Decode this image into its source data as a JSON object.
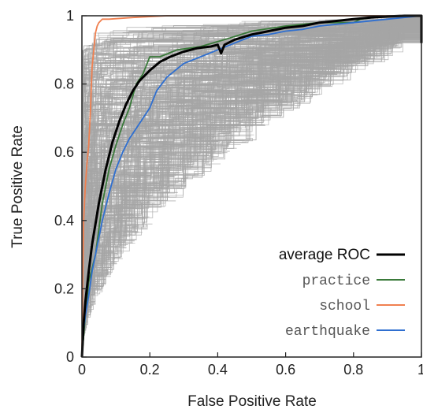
{
  "chart_data": {
    "type": "line",
    "title": "",
    "xlabel": "False Positive Rate",
    "ylabel": "True Positive Rate",
    "xlim": [
      0,
      1
    ],
    "ylim": [
      0,
      1
    ],
    "x_ticks": [
      "0",
      "0.2",
      "0.4",
      "0.6",
      "0.8",
      "1"
    ],
    "y_ticks": [
      "0",
      "0.2",
      "0.4",
      "0.6",
      "0.8",
      "1"
    ],
    "grid": false,
    "legend_position": "bottom-right",
    "background_curves": {
      "description_color": "#a6a6a6",
      "count_estimate": 400
    },
    "series": [
      {
        "name": "average ROC",
        "color": "#000000",
        "x": [
          0,
          0.005,
          0.01,
          0.02,
          0.03,
          0.05,
          0.07,
          0.09,
          0.11,
          0.13,
          0.15,
          0.17,
          0.2,
          0.23,
          0.26,
          0.3,
          0.34,
          0.38,
          0.4,
          0.41,
          0.42,
          0.45,
          0.5,
          0.55,
          0.6,
          0.65,
          0.7,
          0.75,
          0.8,
          0.85,
          0.9,
          0.95,
          1.0,
          1.0
        ],
        "y": [
          0,
          0.1,
          0.16,
          0.25,
          0.33,
          0.45,
          0.55,
          0.63,
          0.69,
          0.74,
          0.78,
          0.81,
          0.84,
          0.865,
          0.88,
          0.895,
          0.905,
          0.91,
          0.915,
          0.89,
          0.915,
          0.93,
          0.945,
          0.955,
          0.965,
          0.97,
          0.98,
          0.985,
          0.99,
          0.995,
          0.998,
          1.0,
          1.0,
          0.92
        ]
      },
      {
        "name": "practice",
        "color": "#3a7a3a",
        "x": [
          0,
          0.01,
          0.02,
          0.04,
          0.06,
          0.08,
          0.1,
          0.12,
          0.14,
          0.16,
          0.18,
          0.2,
          0.23,
          0.28,
          0.35,
          0.42,
          0.5,
          0.6,
          0.7,
          0.8,
          0.82,
          0.9,
          1.0
        ],
        "y": [
          0,
          0.12,
          0.22,
          0.3,
          0.45,
          0.55,
          0.62,
          0.68,
          0.73,
          0.8,
          0.83,
          0.88,
          0.88,
          0.9,
          0.91,
          0.93,
          0.955,
          0.97,
          0.98,
          0.98,
          0.99,
          1.0,
          1.0
        ]
      },
      {
        "name": "school",
        "color": "#f08050",
        "x": [
          0,
          0.002,
          0.005,
          0.01,
          0.015,
          0.02,
          0.025,
          0.03,
          0.035,
          0.04,
          0.045,
          0.05,
          0.055,
          0.06,
          0.08,
          0.15,
          0.25,
          0.4,
          0.6,
          1.0
        ],
        "y": [
          0,
          0.2,
          0.4,
          0.5,
          0.57,
          0.62,
          0.72,
          0.85,
          0.9,
          0.95,
          0.97,
          0.98,
          0.985,
          0.99,
          0.99,
          0.995,
          1.0,
          1.0,
          1.0,
          1.0
        ]
      },
      {
        "name": "earthquake",
        "color": "#2f6fd0",
        "x": [
          0,
          0.005,
          0.01,
          0.02,
          0.03,
          0.04,
          0.06,
          0.08,
          0.1,
          0.12,
          0.14,
          0.16,
          0.18,
          0.2,
          0.22,
          0.25,
          0.3,
          0.35,
          0.4,
          0.45,
          0.5,
          0.55,
          0.6,
          0.65,
          0.7,
          0.8,
          0.9,
          1.0
        ],
        "y": [
          0,
          0.08,
          0.12,
          0.18,
          0.25,
          0.3,
          0.4,
          0.48,
          0.55,
          0.6,
          0.64,
          0.67,
          0.7,
          0.73,
          0.78,
          0.82,
          0.86,
          0.88,
          0.9,
          0.92,
          0.94,
          0.945,
          0.955,
          0.96,
          0.97,
          0.98,
          0.99,
          1.0
        ]
      }
    ]
  }
}
